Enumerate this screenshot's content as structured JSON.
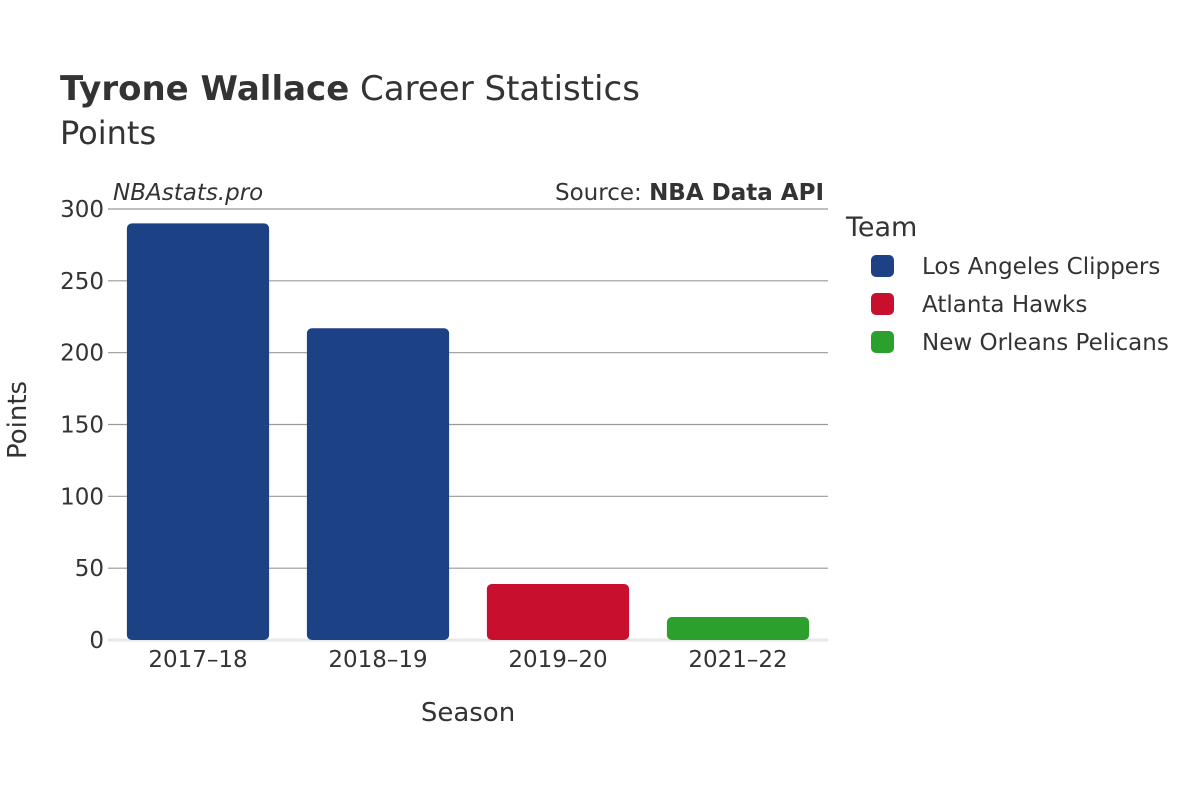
{
  "title": {
    "player": "Tyrone Wallace",
    "rest": " Career Statistics",
    "subtitle": "Points"
  },
  "watermark": "NBAstats.pro",
  "source": {
    "prefix": "Source: ",
    "name": "NBA Data API"
  },
  "legend": {
    "title": "Team",
    "items": [
      {
        "label": "Los Angeles Clippers",
        "color": "#1d4185"
      },
      {
        "label": "Atlanta Hawks",
        "color": "#c8102e"
      },
      {
        "label": "New Orleans Pelicans",
        "color": "#2ca02c"
      }
    ]
  },
  "chart_data": {
    "type": "bar",
    "xlabel": "Season",
    "ylabel": "Points",
    "ylim": [
      0,
      300
    ],
    "yticks": [
      0,
      50,
      100,
      150,
      200,
      250,
      300
    ],
    "grid": true,
    "legend_position": "right",
    "categories": [
      "2017–18",
      "2018–19",
      "2019–20",
      "2021–22"
    ],
    "values": [
      290,
      217,
      39,
      16
    ],
    "teams": [
      "Los Angeles Clippers",
      "Los Angeles Clippers",
      "Atlanta Hawks",
      "New Orleans Pelicans"
    ],
    "colors": [
      "#1d4185",
      "#1d4185",
      "#c8102e",
      "#2ca02c"
    ]
  }
}
